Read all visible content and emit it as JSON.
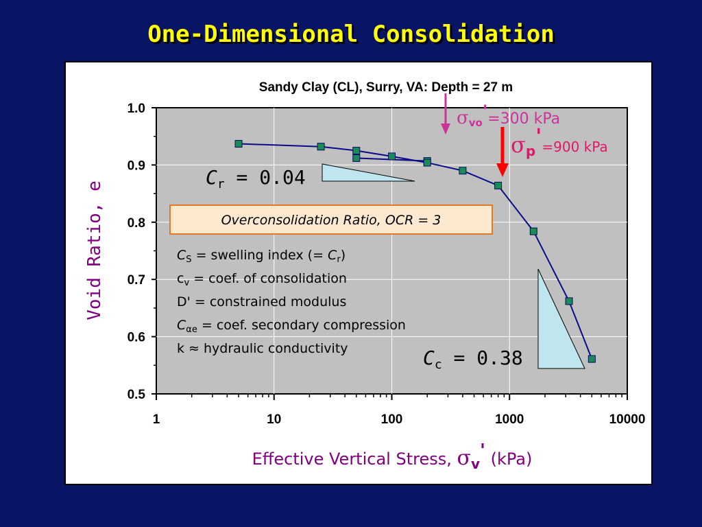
{
  "slide": {
    "title": "One-Dimensional Consolidation"
  },
  "chart_data": {
    "type": "scatter",
    "title": "Sandy Clay (CL), Surry, VA:  Depth = 27 m",
    "xlabel": "Effective Vertical Stress, σv'  (kPa)",
    "xlabel_parts": {
      "main": "Effective Vertical Stress, ",
      "sigma": "σ",
      "sub": "v",
      "prime": "'",
      "unit": "  (kPa)"
    },
    "ylabel": "Void Ratio, e",
    "xscale": "log",
    "xlim": [
      1,
      10000
    ],
    "ylim": [
      0.5,
      1.0
    ],
    "x_ticks": [
      1,
      10,
      100,
      1000,
      10000
    ],
    "x_tick_labels": [
      "1",
      "10",
      "100",
      "1000",
      "10000"
    ],
    "y_ticks": [
      0.5,
      0.6,
      0.7,
      0.8,
      0.9,
      1.0
    ],
    "y_tick_labels": [
      "0.5",
      "0.6",
      "0.7",
      "0.8",
      "0.9",
      "1.0"
    ],
    "grid": true,
    "series": [
      {
        "marker_color": "#1a8a5a",
        "line_color": "#0a0a8a",
        "x": [
          5,
          25,
          50,
          50,
          100,
          200,
          200,
          400,
          800,
          1600,
          3200,
          5000
        ],
        "y": [
          0.937,
          0.932,
          0.925,
          0.912,
          0.915,
          0.907,
          0.904,
          0.89,
          0.864,
          0.784,
          0.662,
          0.561
        ],
        "path_order": [
          0,
          1,
          2,
          4,
          6,
          7,
          8,
          9,
          10,
          11
        ],
        "branch_order": [
          3,
          5
        ]
      }
    ],
    "annotations": {
      "sigma_vo": {
        "value": 300,
        "sigma": "σ",
        "sub": "vo",
        "prime": "'",
        "rest": "=300 kPa",
        "color": "#cc3399"
      },
      "sigma_p": {
        "value": 900,
        "sigma": "σ",
        "sub": "p",
        "prime": "'",
        "rest": "=900 kPa",
        "color": "#e0186b",
        "arrow_color": "#ff0000"
      },
      "cr": {
        "symbol": "C",
        "sub": "r",
        "rest": " = 0.04"
      },
      "cc": {
        "symbol": "C",
        "sub": "c",
        "rest": " = 0.38"
      },
      "ocr_box": {
        "text": "Overconsolidation Ratio, OCR = 3",
        "fill": "#fde9d0",
        "border": "#e87722"
      },
      "definitions": [
        {
          "sym": "C",
          "sub": "S",
          "text": " = swelling index (= ",
          "sym2": "C",
          "sub2": "r",
          "tail": ")"
        },
        {
          "sym": "c",
          "sub": "v",
          "text": " = coef. of consolidation",
          "sym2": "",
          "sub2": "",
          "tail": ""
        },
        {
          "sym": "D'",
          "sub": "",
          "text": " = constrained modulus",
          "sym2": "",
          "sub2": "",
          "tail": ""
        },
        {
          "sym": "C",
          "sub": "αe",
          "text": " = coef. secondary compression",
          "sym2": "",
          "sub2": "",
          "tail": ""
        },
        {
          "sym": "k",
          "sub": "",
          "text": " ≈ hydraulic conductivity",
          "sym2": "",
          "sub2": "",
          "tail": ""
        }
      ]
    }
  }
}
